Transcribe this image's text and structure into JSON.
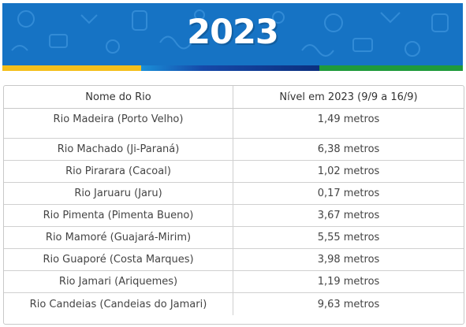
{
  "banner": {
    "title": "2023"
  },
  "colors": {
    "banner_blue": "#1673c4",
    "stripe_yellow": "#f4bf1c",
    "stripe_blue": "#0b2f7e",
    "stripe_green": "#1f9a3b"
  },
  "table": {
    "headers": [
      "Nome do Rio",
      "Nível em 2023 (9/9 a 16/9)"
    ],
    "rows": [
      {
        "river": "Rio Madeira (Porto Velho)",
        "level": "1,49 metros"
      },
      {
        "river": "Rio Machado (Ji-Paraná)",
        "level": "6,38 metros"
      },
      {
        "river": "Rio Pirarara (Cacoal)",
        "level": "1,02 metros"
      },
      {
        "river": "Rio Jaruaru (Jaru)",
        "level": "0,17 metros"
      },
      {
        "river": "Rio Pimenta (Pimenta Bueno)",
        "level": "3,67 metros"
      },
      {
        "river": "Rio Mamoré (Guajará-Mirim)",
        "level": "5,55 metros"
      },
      {
        "river": "Rio Guaporé (Costa Marques)",
        "level": "3,98 metros"
      },
      {
        "river": "Rio Jamari (Ariquemes)",
        "level": "1,19 metros"
      },
      {
        "river": "Rio Candeias (Candeias do Jamari)",
        "level": "9,63 metros"
      }
    ]
  }
}
